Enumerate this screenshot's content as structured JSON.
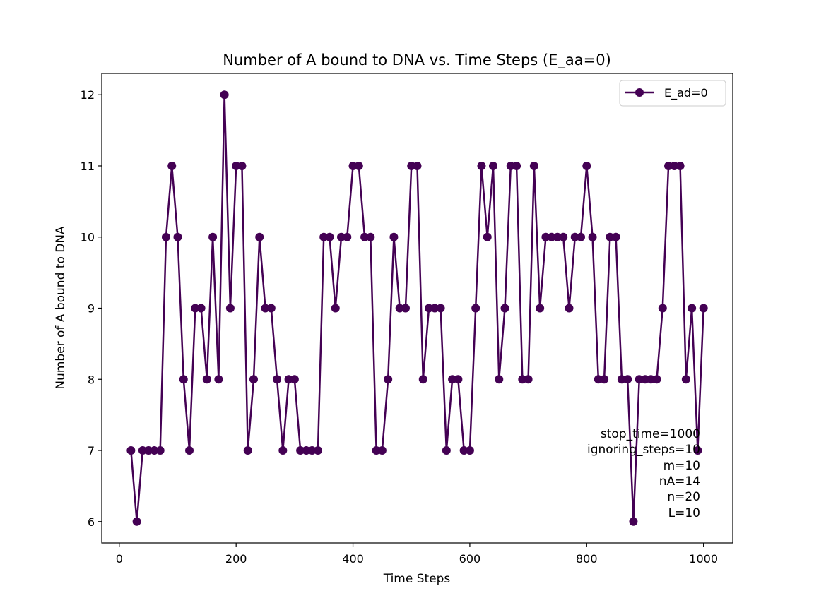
{
  "chart_data": {
    "type": "line",
    "title": "Number of A bound to DNA vs. Time Steps (E_aa=0)",
    "xlabel": "Time Steps",
    "ylabel": "Number of A bound to DNA",
    "xlim": [
      -30,
      1050
    ],
    "ylim": [
      5.7,
      12.3
    ],
    "xticks": [
      0,
      200,
      400,
      600,
      800,
      1000
    ],
    "yticks": [
      6,
      7,
      8,
      9,
      10,
      11,
      12
    ],
    "grid": false,
    "legend_position": "top-right",
    "series": [
      {
        "name": "E_ad=0",
        "color": "#440154",
        "marker": "circle",
        "x": [
          20,
          30,
          40,
          50,
          60,
          70,
          80,
          90,
          100,
          110,
          120,
          130,
          140,
          150,
          160,
          170,
          180,
          190,
          200,
          210,
          220,
          230,
          240,
          250,
          260,
          270,
          280,
          290,
          300,
          310,
          320,
          330,
          340,
          350,
          360,
          370,
          380,
          390,
          400,
          410,
          420,
          430,
          440,
          450,
          460,
          470,
          480,
          490,
          500,
          510,
          520,
          530,
          540,
          550,
          560,
          570,
          580,
          590,
          600,
          610,
          620,
          630,
          640,
          650,
          660,
          670,
          680,
          690,
          700,
          710,
          720,
          730,
          740,
          750,
          760,
          770,
          780,
          790,
          800,
          810,
          820,
          830,
          840,
          850,
          860,
          870,
          880,
          890,
          900,
          910,
          920,
          930,
          940,
          950,
          960,
          970,
          980,
          990,
          1000
        ],
        "y": [
          7,
          6,
          7,
          7,
          7,
          7,
          10,
          11,
          10,
          8,
          7,
          9,
          9,
          8,
          10,
          8,
          12,
          9,
          11,
          11,
          7,
          8,
          10,
          9,
          9,
          8,
          7,
          8,
          8,
          7,
          7,
          7,
          7,
          10,
          10,
          9,
          10,
          10,
          11,
          11,
          10,
          10,
          7,
          7,
          8,
          10,
          9,
          9,
          11,
          11,
          8,
          9,
          9,
          9,
          7,
          8,
          8,
          7,
          7,
          9,
          11,
          10,
          11,
          8,
          9,
          11,
          11,
          8,
          8,
          11,
          9,
          10,
          10,
          10,
          10,
          9,
          10,
          10,
          11,
          10,
          8,
          8,
          10,
          10,
          8,
          8,
          6,
          8,
          8,
          8,
          8,
          9,
          11,
          11,
          11,
          8,
          9,
          7,
          9
        ]
      }
    ],
    "annotations": [
      "stop_time=1000",
      "ignoring_steps=10",
      "m=10",
      "nA=14",
      "n=20",
      "L=10"
    ]
  }
}
